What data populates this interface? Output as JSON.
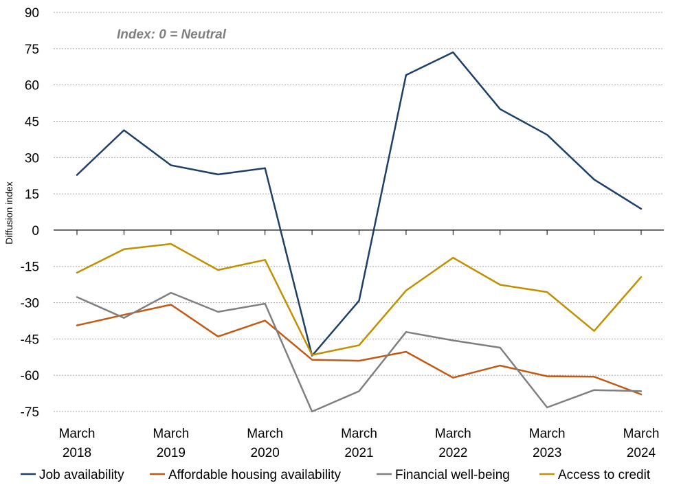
{
  "chart_data": {
    "type": "line",
    "title": "",
    "annotation": "Index: 0 = Neutral",
    "ylabel": "Diffusion index",
    "xlabel": "",
    "ylim": [
      -75,
      90
    ],
    "yticks": [
      90,
      75,
      60,
      45,
      30,
      15,
      0,
      -15,
      -30,
      -45,
      -60,
      -75
    ],
    "grid": true,
    "legend_position": "bottom",
    "x_tick_labels": [
      {
        "line1": "March",
        "line2": "2018",
        "index": 0
      },
      {
        "line1": "March",
        "line2": "2019",
        "index": 2
      },
      {
        "line1": "March",
        "line2": "2020",
        "index": 4
      },
      {
        "line1": "March",
        "line2": "2021",
        "index": 6
      },
      {
        "line1": "March",
        "line2": "2022",
        "index": 8
      },
      {
        "line1": "March",
        "line2": "2023",
        "index": 10
      },
      {
        "line1": "March",
        "line2": "2024",
        "index": 12
      }
    ],
    "categories": [
      "Mar 2018",
      "Sep 2018",
      "Mar 2019",
      "Sep 2019",
      "Mar 2020",
      "Sep 2020",
      "Mar 2021",
      "Sep 2021",
      "Mar 2022",
      "Sep 2022",
      "Mar 2023",
      "Sep 2023",
      "Mar 2024"
    ],
    "series": [
      {
        "name": "Job availability",
        "color": "#1f3f66",
        "values": [
          22.8,
          41.3,
          26.8,
          23.0,
          25.6,
          -51.9,
          -29.2,
          64.1,
          73.5,
          50.0,
          39.4,
          20.9,
          8.8
        ]
      },
      {
        "name": "Affordable housing availability",
        "color": "#c05a14",
        "values": [
          -39.4,
          -35.0,
          -30.8,
          -44.0,
          -37.4,
          -53.6,
          -54.0,
          -50.3,
          -61.0,
          -56.0,
          -60.4,
          -60.6,
          -67.9
        ]
      },
      {
        "name": "Financial well-being",
        "color": "#7f7f7f",
        "values": [
          -27.7,
          -36.3,
          -25.9,
          -33.8,
          -30.4,
          -75.0,
          -66.6,
          -42.1,
          -45.6,
          -48.6,
          -73.3,
          -66.1,
          -66.6
        ]
      },
      {
        "name": "Access to credit",
        "color": "#bf9000",
        "values": [
          -17.6,
          -7.9,
          -5.7,
          -16.5,
          -12.3,
          -51.6,
          -47.6,
          -25.0,
          -11.4,
          -22.6,
          -25.6,
          -41.7,
          -19.4
        ]
      }
    ]
  }
}
